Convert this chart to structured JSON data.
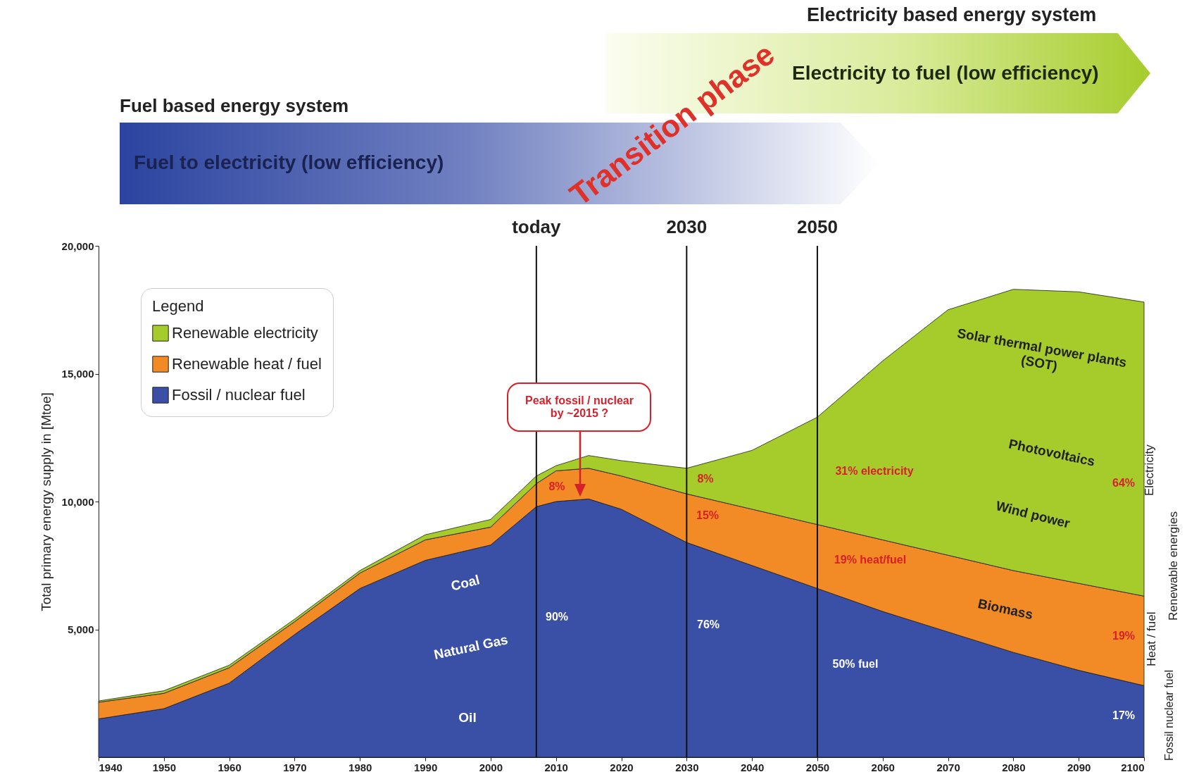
{
  "chart_data": {
    "type": "area",
    "stacked": true,
    "xlabel": null,
    "ylabel": "Total primary energy supply in [Mtoe]",
    "legend_title": "Legend",
    "legend": "top left",
    "grid": false,
    "x": [
      1940,
      1950,
      1960,
      1970,
      1980,
      1990,
      2000,
      2007,
      2010,
      2015,
      2020,
      2030,
      2040,
      2050,
      2060,
      2070,
      2080,
      2090,
      2100
    ],
    "xlim": [
      1940,
      2100
    ],
    "xticks": [
      1940,
      1950,
      1960,
      1970,
      1980,
      1990,
      2000,
      2010,
      2020,
      2030,
      2040,
      2050,
      2060,
      2070,
      2080,
      2090,
      2100
    ],
    "ylim": [
      0,
      20000
    ],
    "yticks": [
      {
        "value": 5000,
        "label": "5,000"
      },
      {
        "value": 10000,
        "label": "10,000"
      },
      {
        "value": 15000,
        "label": "15,000"
      },
      {
        "value": 20000,
        "label": "20,000"
      }
    ],
    "series": [
      {
        "name": "Fossil / nuclear fuel",
        "color": "#3a4fa6",
        "values": [
          1500,
          1900,
          2900,
          4800,
          6600,
          7700,
          8300,
          9800,
          10000,
          10100,
          9700,
          8400,
          7500,
          6600,
          5700,
          4900,
          4100,
          3400,
          2800
        ]
      },
      {
        "name": "Renewable heat / fuel",
        "color": "#f28a25",
        "values": [
          650,
          600,
          600,
          500,
          600,
          800,
          700,
          900,
          1200,
          1200,
          1300,
          1900,
          2200,
          2500,
          2800,
          3000,
          3200,
          3400,
          3500
        ]
      },
      {
        "name": "Renewable electricity",
        "color": "#a6cc2c",
        "values": [
          50,
          100,
          100,
          100,
          100,
          200,
          300,
          300,
          200,
          500,
          600,
          1000,
          2300,
          4200,
          7000,
          9600,
          11000,
          11400,
          11500
        ]
      }
    ],
    "ref_lines": [
      {
        "axis": "x",
        "value": 2007,
        "label": "today"
      },
      {
        "axis": "x",
        "value": 2030,
        "label": "2030"
      },
      {
        "axis": "x",
        "value": 2050,
        "label": "2050"
      }
    ],
    "annotations": [
      "Fuel based energy system",
      "Fuel to electricity (low efficiency)",
      "Transition phase",
      "Electricity based energy system",
      "Electricity to fuel (low efficiency)",
      "Electricity",
      "Heat / fuel",
      "Fossil nuclear fuel",
      "Renewable energies",
      "Peak fossil / nuclear by ~2015 ?",
      "Oil",
      "Natural Gas",
      "Coal",
      "90%",
      "76%",
      "50% fuel",
      "17%",
      "8%",
      "15%",
      "19% heat/fuel",
      "19%",
      "Biomass",
      "8%",
      "31% electricity",
      "64%",
      "Wind power",
      "Photovoltaics",
      "Solar thermal power plants (SOT)"
    ]
  }
}
